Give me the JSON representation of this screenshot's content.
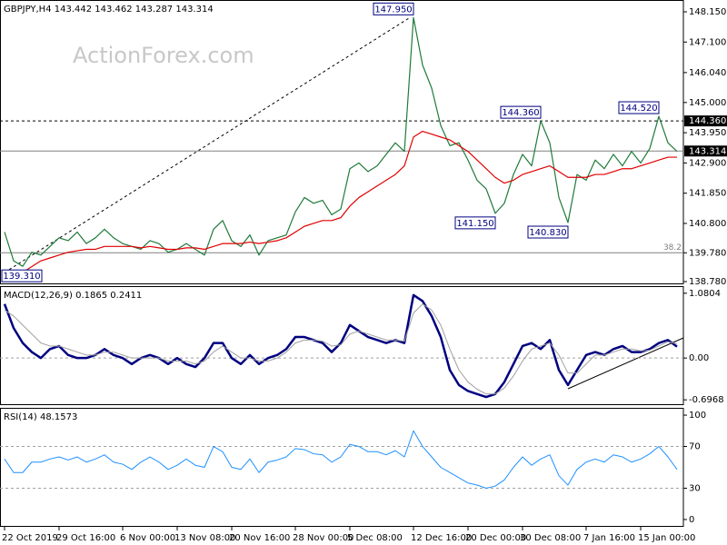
{
  "chart_data": [
    {
      "type": "line",
      "title": "GBPJPY,H4  143.442 143.462 143.287 143.314",
      "watermark": "ActionForex.com",
      "ylim": [
        138.685,
        148.56
      ],
      "yticks": [
        {
          "value": 148.15,
          "label": "148.150"
        },
        {
          "value": 147.1,
          "label": "147.100"
        },
        {
          "value": 146.04,
          "label": "146.040"
        },
        {
          "value": 145,
          "label": "145.000"
        },
        {
          "value": 143.95,
          "label": "143.950"
        },
        {
          "value": 142.9,
          "label": "142.900"
        },
        {
          "value": 141.85,
          "label": "141.850"
        },
        {
          "value": 140.8,
          "label": "140.800"
        },
        {
          "value": 139.78,
          "label": "139.780"
        },
        {
          "value": 138.78,
          "label": "138.780"
        }
      ],
      "grid": false,
      "series": [
        {
          "name": "GBPJPY",
          "color": "#1f7a3a",
          "width": 1.2,
          "values": [
            140.5,
            139.5,
            139.31,
            139.8,
            139.7,
            140.0,
            140.3,
            140.2,
            140.5,
            140.1,
            140.3,
            140.6,
            140.3,
            140.1,
            140.0,
            139.9,
            140.2,
            140.1,
            139.8,
            139.9,
            140.1,
            139.9,
            139.7,
            140.6,
            140.9,
            140.2,
            140.0,
            140.4,
            139.7,
            140.2,
            140.3,
            140.4,
            141.2,
            141.7,
            141.5,
            141.6,
            141.1,
            141.3,
            142.7,
            142.9,
            142.6,
            142.8,
            143.2,
            143.6,
            143.3,
            147.95,
            146.3,
            145.5,
            144.2,
            143.5,
            143.6,
            143.0,
            142.3,
            142.0,
            141.15,
            141.5,
            142.5,
            143.2,
            142.8,
            144.36,
            143.6,
            141.7,
            140.83,
            142.5,
            142.3,
            143.0,
            142.7,
            143.2,
            142.8,
            143.3,
            142.9,
            143.4,
            144.52,
            143.6,
            143.3
          ]
        },
        {
          "name": "MA",
          "color": "#e00000",
          "width": 1.2,
          "values": [
            138.9,
            139.0,
            139.1,
            139.3,
            139.5,
            139.6,
            139.7,
            139.8,
            139.85,
            139.9,
            139.9,
            140.0,
            140.0,
            140.0,
            140.0,
            139.95,
            140.0,
            139.95,
            139.9,
            139.9,
            139.95,
            139.95,
            139.9,
            140.0,
            140.1,
            140.1,
            140.1,
            140.15,
            140.1,
            140.15,
            140.2,
            140.3,
            140.5,
            140.7,
            140.8,
            140.9,
            140.9,
            141.0,
            141.4,
            141.7,
            141.9,
            142.1,
            142.3,
            142.5,
            142.8,
            143.8,
            144.0,
            143.9,
            143.8,
            143.7,
            143.5,
            143.3,
            143.0,
            142.7,
            142.4,
            142.2,
            142.3,
            142.5,
            142.6,
            142.7,
            142.8,
            142.6,
            142.4,
            142.4,
            142.4,
            142.5,
            142.5,
            142.6,
            142.7,
            142.7,
            142.8,
            142.9,
            143.0,
            143.1,
            143.1
          ]
        }
      ],
      "annotations": [
        {
          "value": 147.95,
          "label": "147.950"
        },
        {
          "value": 144.36,
          "label": "144.360"
        },
        {
          "value": 144.52,
          "label": "144.520"
        },
        {
          "value": 141.15,
          "label": "141.150"
        },
        {
          "value": 140.83,
          "label": "140.830"
        },
        {
          "value": 139.31,
          "label": "139.310"
        }
      ],
      "price_labels": [
        {
          "value": 144.36,
          "label": "144.360",
          "line": "dashed"
        },
        {
          "value": 143.314,
          "label": "143.314",
          "line": "solid"
        }
      ],
      "fib_level": {
        "percent": 38.2,
        "price": 139.78
      }
    },
    {
      "type": "line",
      "title": "MACD(12,26,9) 0.1865 0.2411",
      "ylim": [
        -0.785,
        1.199
      ],
      "yticks": [
        1.0804,
        {
          "value": 0,
          "label": "0.00"
        },
        -0.6968
      ],
      "grid": true,
      "series": [
        {
          "name": "MACD",
          "color": "#000080",
          "width": 2.5,
          "values": [
            0.9,
            0.5,
            0.25,
            0.1,
            0.0,
            0.15,
            0.2,
            0.05,
            0.0,
            0.0,
            0.05,
            0.15,
            0.05,
            0.0,
            -0.1,
            0.0,
            0.05,
            0.0,
            -0.1,
            0.0,
            -0.1,
            -0.15,
            0.0,
            0.25,
            0.25,
            0.0,
            -0.1,
            0.05,
            -0.1,
            0.0,
            0.05,
            0.15,
            0.35,
            0.35,
            0.3,
            0.25,
            0.1,
            0.25,
            0.55,
            0.45,
            0.35,
            0.3,
            0.25,
            0.3,
            0.25,
            1.05,
            0.95,
            0.7,
            0.35,
            -0.2,
            -0.45,
            -0.55,
            -0.6,
            -0.65,
            -0.6,
            -0.4,
            -0.1,
            0.2,
            0.25,
            0.15,
            0.3,
            -0.2,
            -0.45,
            -0.2,
            0.05,
            0.1,
            0.05,
            0.15,
            0.2,
            0.1,
            0.1,
            0.15,
            0.25,
            0.3,
            0.19
          ]
        },
        {
          "name": "Signal",
          "color": "#a0a0a0",
          "width": 1,
          "values": [
            0.8,
            0.7,
            0.55,
            0.4,
            0.25,
            0.2,
            0.2,
            0.15,
            0.1,
            0.05,
            0.05,
            0.1,
            0.1,
            0.05,
            0.0,
            0.0,
            0.0,
            0.0,
            -0.05,
            -0.05,
            -0.05,
            -0.1,
            -0.05,
            0.1,
            0.2,
            0.1,
            0.0,
            0.0,
            -0.05,
            -0.05,
            0.0,
            0.1,
            0.25,
            0.3,
            0.3,
            0.28,
            0.2,
            0.22,
            0.4,
            0.45,
            0.4,
            0.35,
            0.3,
            0.3,
            0.28,
            0.75,
            0.9,
            0.8,
            0.55,
            0.15,
            -0.2,
            -0.4,
            -0.52,
            -0.6,
            -0.6,
            -0.5,
            -0.3,
            -0.05,
            0.15,
            0.2,
            0.25,
            0.05,
            -0.25,
            -0.25,
            -0.1,
            0.05,
            0.05,
            0.1,
            0.15,
            0.15,
            0.12,
            0.13,
            0.2,
            0.27,
            0.24
          ]
        }
      ]
    },
    {
      "type": "line",
      "title": "RSI(14) 48.1573",
      "ylim": [
        -7,
        107
      ],
      "yticks": [
        100,
        70,
        30,
        0
      ],
      "grid": true,
      "categories": [
        "22 Oct 2019",
        null,
        null,
        null,
        null,
        null,
        "29 Oct 16:00",
        null,
        null,
        null,
        null,
        null,
        null,
        "6 Nov 00:00",
        null,
        null,
        null,
        null,
        null,
        "13 Nov 08:00",
        null,
        null,
        null,
        null,
        null,
        "20 Nov 16:00",
        null,
        null,
        null,
        null,
        null,
        null,
        "28 Nov 00:00",
        null,
        null,
        null,
        null,
        null,
        "5 Dec 08:00",
        null,
        null,
        null,
        null,
        null,
        null,
        "12 Dec 16:00",
        null,
        null,
        null,
        null,
        null,
        "20 Dec 00:00",
        null,
        null,
        null,
        null,
        null,
        "30 Dec 08:00",
        null,
        null,
        null,
        null,
        null,
        null,
        "7 Jan 16:00",
        null,
        null,
        null,
        null,
        null,
        "15 Jan 00:00",
        null,
        null,
        null,
        null
      ],
      "series": [
        {
          "name": "RSI",
          "color": "#1e90ff",
          "width": 1,
          "values": [
            58,
            45,
            45,
            55,
            55,
            58,
            60,
            57,
            60,
            55,
            58,
            62,
            55,
            53,
            48,
            55,
            60,
            55,
            48,
            52,
            58,
            52,
            50,
            70,
            65,
            50,
            48,
            58,
            45,
            55,
            57,
            60,
            68,
            67,
            63,
            62,
            55,
            60,
            72,
            70,
            65,
            65,
            62,
            66,
            60,
            85,
            70,
            60,
            50,
            45,
            40,
            35,
            33,
            30,
            32,
            38,
            50,
            60,
            52,
            58,
            62,
            42,
            33,
            48,
            55,
            58,
            55,
            62,
            60,
            55,
            58,
            63,
            70,
            60,
            48
          ]
        }
      ]
    }
  ]
}
